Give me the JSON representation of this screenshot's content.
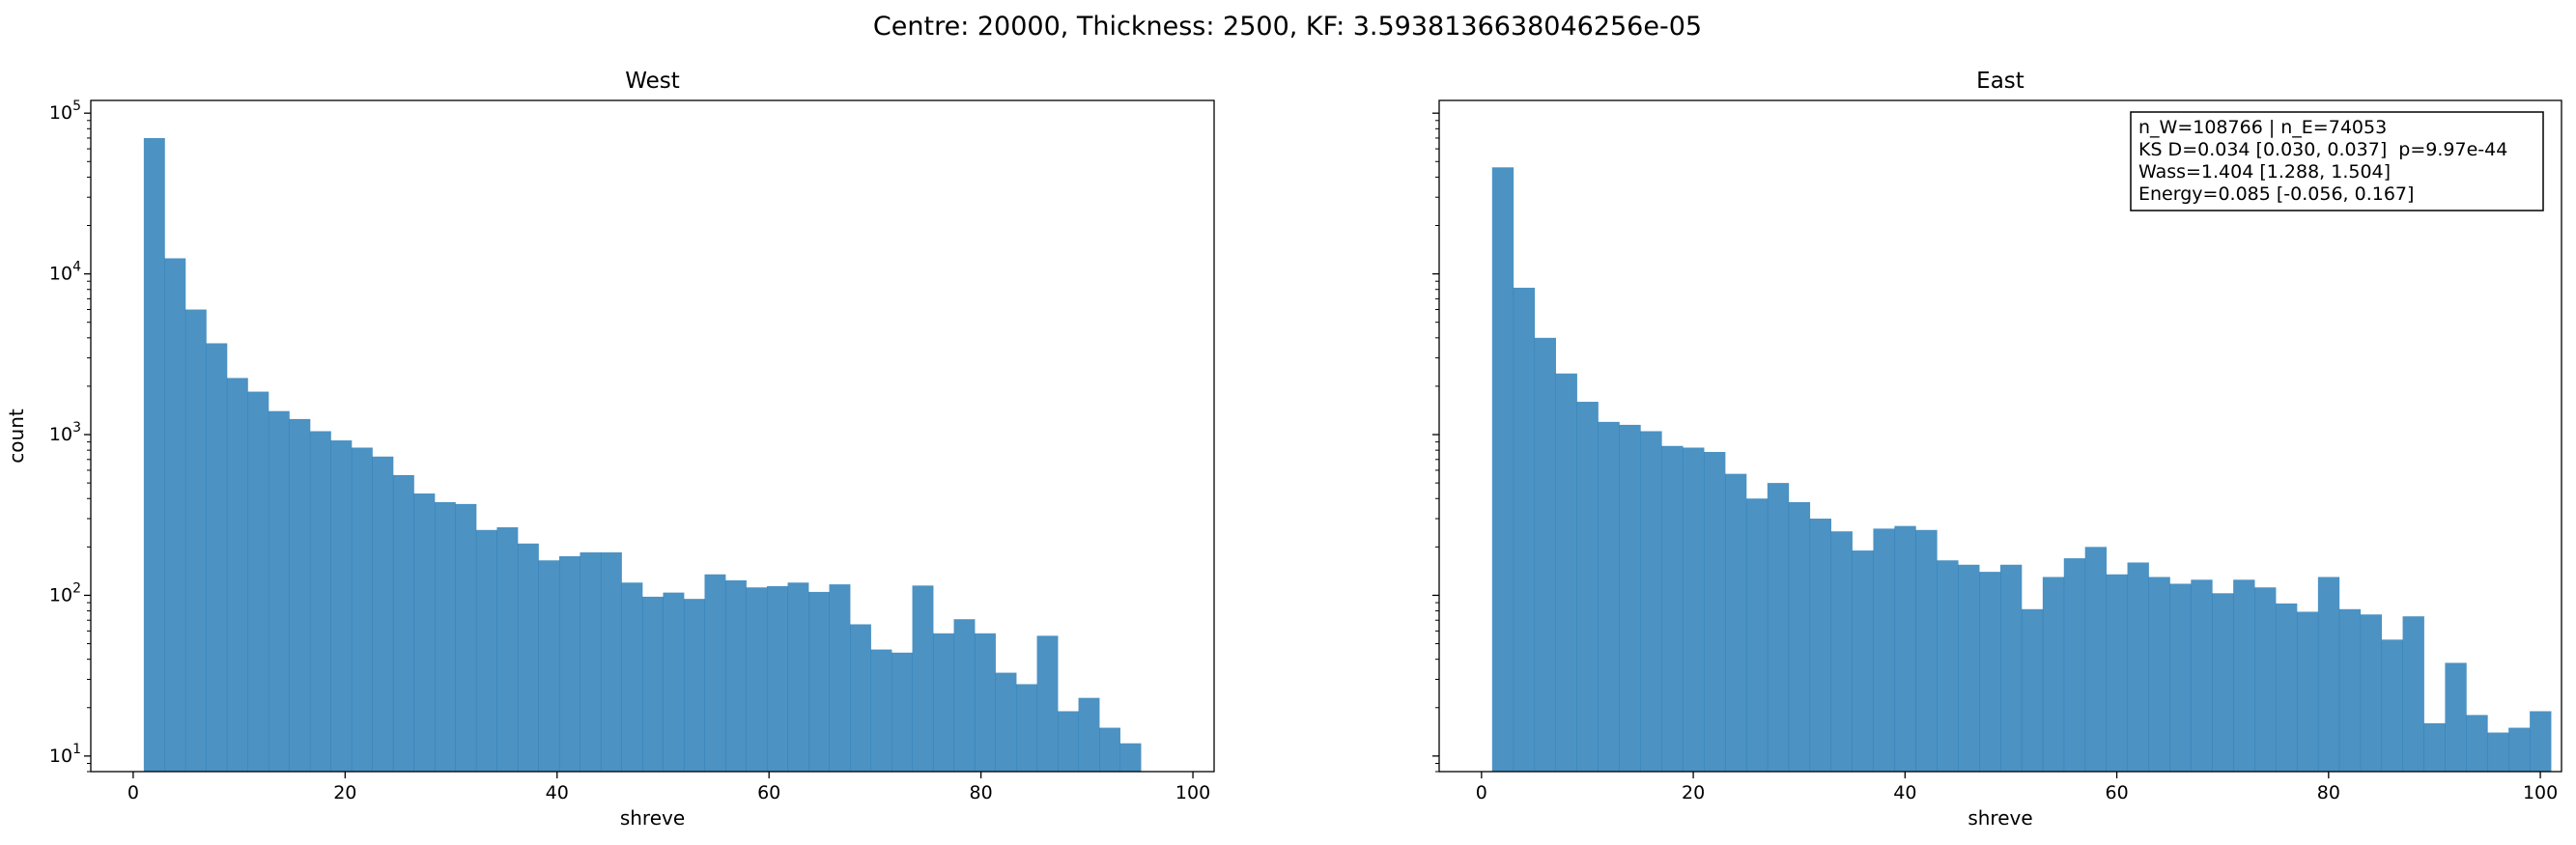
{
  "suptitle": "Centre: 20000, Thickness: 2500, KF: 3.5938136638046256e-05",
  "chart_data": [
    {
      "type": "bar",
      "title": "West",
      "xlabel": "shreve",
      "ylabel": "count",
      "yscale": "log",
      "xlim": [
        -4,
        102
      ],
      "ylim": [
        8,
        120000
      ],
      "xticks": [
        0,
        20,
        40,
        60,
        80,
        100
      ],
      "yticks": [
        {
          "value": 10,
          "base": "10",
          "exp": "1"
        },
        {
          "value": 100,
          "base": "10",
          "exp": "2"
        },
        {
          "value": 1000,
          "base": "10",
          "exp": "3"
        },
        {
          "value": 10000,
          "base": "10",
          "exp": "4"
        },
        {
          "value": 100000,
          "base": "10",
          "exp": "5"
        }
      ],
      "color": "#1f77b4",
      "bin_start": 1,
      "bin_width": 1.96,
      "values": [
        70000,
        12500,
        6000,
        3700,
        2250,
        1850,
        1400,
        1250,
        1050,
        920,
        830,
        730,
        560,
        430,
        380,
        370,
        255,
        265,
        210,
        165,
        175,
        185,
        185,
        120,
        98,
        104,
        95,
        135,
        124,
        112,
        114,
        120,
        105,
        117,
        66,
        46,
        44,
        115,
        58,
        71,
        58,
        33,
        28,
        56,
        19,
        23,
        15,
        12
      ]
    },
    {
      "type": "bar",
      "title": "East",
      "xlabel": "shreve",
      "ylabel": "",
      "yscale": "log",
      "xlim": [
        -4,
        102
      ],
      "ylim": [
        8,
        120000
      ],
      "xticks": [
        0,
        20,
        40,
        60,
        80,
        100
      ],
      "color": "#1f77b4",
      "bin_start": 1,
      "bin_width": 2.0,
      "values": [
        46000,
        8200,
        4000,
        2400,
        1600,
        1200,
        1150,
        1050,
        850,
        830,
        780,
        570,
        400,
        500,
        380,
        300,
        250,
        190,
        260,
        270,
        255,
        165,
        155,
        140,
        155,
        82,
        130,
        170,
        200,
        135,
        160,
        130,
        118,
        125,
        103,
        125,
        112,
        89,
        79,
        130,
        82,
        76,
        53,
        74,
        16,
        38,
        18,
        14,
        15,
        19
      ]
    }
  ],
  "stats_box": [
    "n_W=108766 | n_E=74053",
    "KS D=0.034 [0.030, 0.037]  p=9.97e-44",
    "Wass=1.404 [1.288, 1.504]",
    "Energy=0.085 [-0.056, 0.167]"
  ]
}
